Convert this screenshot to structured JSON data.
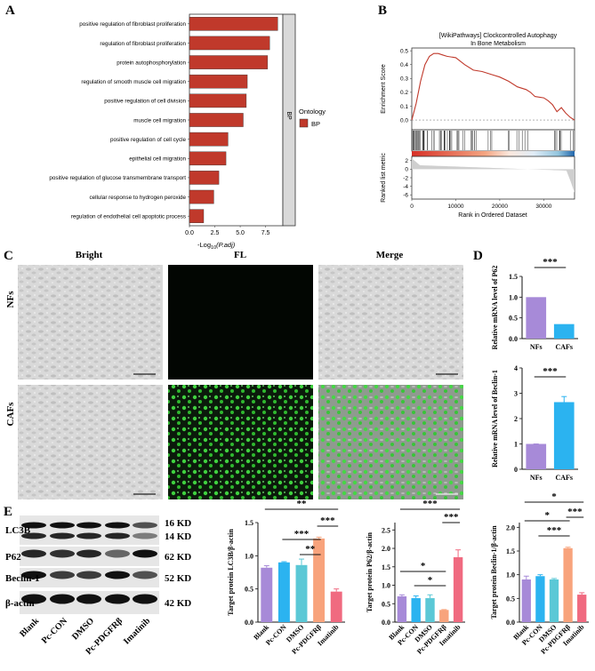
{
  "panels": {
    "A": "A",
    "B": "B",
    "C": "C",
    "D": "D",
    "E": "E"
  },
  "colors": {
    "bar_red": "#c0392b",
    "purple": "#a78ad8",
    "blue": "#2bb3f0",
    "teal": "#5bc8d6",
    "salmon": "#f8a37c",
    "pink": "#f06a80"
  },
  "panel_a": {
    "facet_label": "BP",
    "legend_title": "Ontology",
    "legend_entry": "BP",
    "xlabel_main": "-Log",
    "xlabel_sub": "10",
    "xlabel_tail": "(P.adj)"
  },
  "panel_b": {
    "title_line1": "[WikiPathways] Clockcontrolled Autophagy",
    "title_line2": "In Bone Metabolism",
    "ylabel_top": "Enrichment Score",
    "ylabel_bottom": "Ranked list metric",
    "xlabel": "Rank in Ordered Dataset"
  },
  "panel_c": {
    "col_bright": "Bright",
    "col_fl": "FL",
    "col_merge": "Merge",
    "row_nfs": "NFs",
    "row_cafs": "CAFs"
  },
  "panel_e": {
    "blot_labels": [
      "LC3B",
      "P62",
      "Beclin-1",
      "β-actin"
    ],
    "kd_labels": [
      "16 KD",
      "14 KD",
      "62 KD",
      "52 KD",
      "42 KD"
    ],
    "lane_labels": [
      "Blank",
      "Pc-CON",
      "DMSO",
      "Pc-PDGFRβ",
      "Imatinib"
    ]
  },
  "chart_data": [
    {
      "type": "bar",
      "orientation": "horizontal",
      "categories": [
        "positive regulation of fibroblast proliferation",
        "regulation of fibroblast proliferation",
        "protein autophosphorylation",
        "regulation of smooth muscle cell migration",
        "positive regulation of cell division",
        "muscle cell migration",
        "positive regulation of cell cycle",
        "epithelial cell migration",
        "positive regulation of glucose transmembrane transport",
        "cellular response to hydrogen peroxide",
        "regulation of endothelial cell apoptotic process"
      ],
      "values": [
        8.7,
        7.9,
        7.7,
        5.7,
        5.6,
        5.3,
        3.8,
        3.6,
        2.9,
        2.4,
        1.4
      ],
      "xlim": [
        0,
        9.2
      ],
      "xticks": [
        "0.0",
        "2.5",
        "5.0",
        "7.5"
      ]
    },
    {
      "type": "line",
      "xlabel": "Rank in Ordered Dataset",
      "ylabel": "Enrichment Score",
      "xlim": [
        0,
        37000
      ],
      "ylim": [
        -0.07,
        0.52
      ],
      "yticks": [
        "0.5",
        "0.4",
        "0.3",
        "0.2",
        "0.1",
        "0.0"
      ],
      "xticks": [
        "0",
        "10000",
        "20000",
        "30000"
      ],
      "metric_yticks": [
        "2",
        "0",
        "-2",
        "-4",
        "-6"
      ],
      "x": [
        0,
        1000,
        2000,
        3000,
        4000,
        5000,
        6000,
        7000,
        8000,
        10000,
        12000,
        14000,
        16000,
        18000,
        20000,
        22000,
        24000,
        26000,
        27000,
        28000,
        30000,
        31000,
        32000,
        33000,
        34000,
        35000,
        36000,
        37000
      ],
      "y": [
        0.0,
        0.12,
        0.28,
        0.4,
        0.46,
        0.48,
        0.48,
        0.47,
        0.46,
        0.45,
        0.4,
        0.36,
        0.35,
        0.33,
        0.31,
        0.28,
        0.24,
        0.22,
        0.2,
        0.17,
        0.16,
        0.14,
        0.11,
        0.06,
        0.09,
        0.05,
        0.02,
        0.0
      ]
    },
    {
      "type": "bar",
      "ylabel": "Relative mRNA level of P62",
      "categories": [
        "NFs",
        "CAFs"
      ],
      "values": [
        1.0,
        0.35
      ],
      "ylim": [
        0,
        1.5
      ],
      "yticks": [
        "0.0",
        "0.5",
        "1.0",
        "1.5"
      ],
      "significance": "***"
    },
    {
      "type": "bar",
      "ylabel": "Relative mRNA level of Beclin-1",
      "categories": [
        "NFs",
        "CAFs"
      ],
      "values": [
        1.0,
        2.65
      ],
      "ylim": [
        0,
        4
      ],
      "yticks": [
        "0",
        "1",
        "2",
        "3",
        "4"
      ],
      "significance": "***"
    },
    {
      "type": "bar",
      "ylabel": "Target protein LC3B/β-actin",
      "categories": [
        "Blank",
        "Pc-CON",
        "DMSO",
        "Pc-PDGFRβ",
        "Imatinib"
      ],
      "values": [
        0.82,
        0.9,
        0.86,
        1.26,
        0.46
      ],
      "ylim": [
        0,
        1.5
      ],
      "yticks": [
        "0.0",
        "0.5",
        "1.0",
        "1.5"
      ],
      "significance": [
        "**",
        "***",
        "***",
        "**"
      ]
    },
    {
      "type": "bar",
      "ylabel": "Target protein P62/β-actin",
      "categories": [
        "Blank",
        "Pc-CON",
        "DMSO",
        "Pc-PDGFRβ",
        "Imatinib"
      ],
      "values": [
        0.7,
        0.65,
        0.65,
        0.33,
        1.76
      ],
      "ylim": [
        0,
        2.7
      ],
      "yticks": [
        "0.0",
        "0.5",
        "1.0",
        "1.5",
        "2.0",
        "2.5"
      ],
      "significance": [
        "***",
        "***",
        "*",
        "*"
      ]
    },
    {
      "type": "bar",
      "ylabel": "Target protein Beclin-1/β-actin",
      "categories": [
        "Blank",
        "Pc-CON",
        "DMSO",
        "Pc-PDGFRβ",
        "Imatinib"
      ],
      "values": [
        0.9,
        0.97,
        0.9,
        1.56,
        0.58
      ],
      "ylim": [
        0,
        2.1
      ],
      "yticks": [
        "0.0",
        "0.5",
        "1.0",
        "1.5",
        "2.0"
      ],
      "significance": [
        "*",
        "***",
        "*",
        "***"
      ]
    }
  ]
}
